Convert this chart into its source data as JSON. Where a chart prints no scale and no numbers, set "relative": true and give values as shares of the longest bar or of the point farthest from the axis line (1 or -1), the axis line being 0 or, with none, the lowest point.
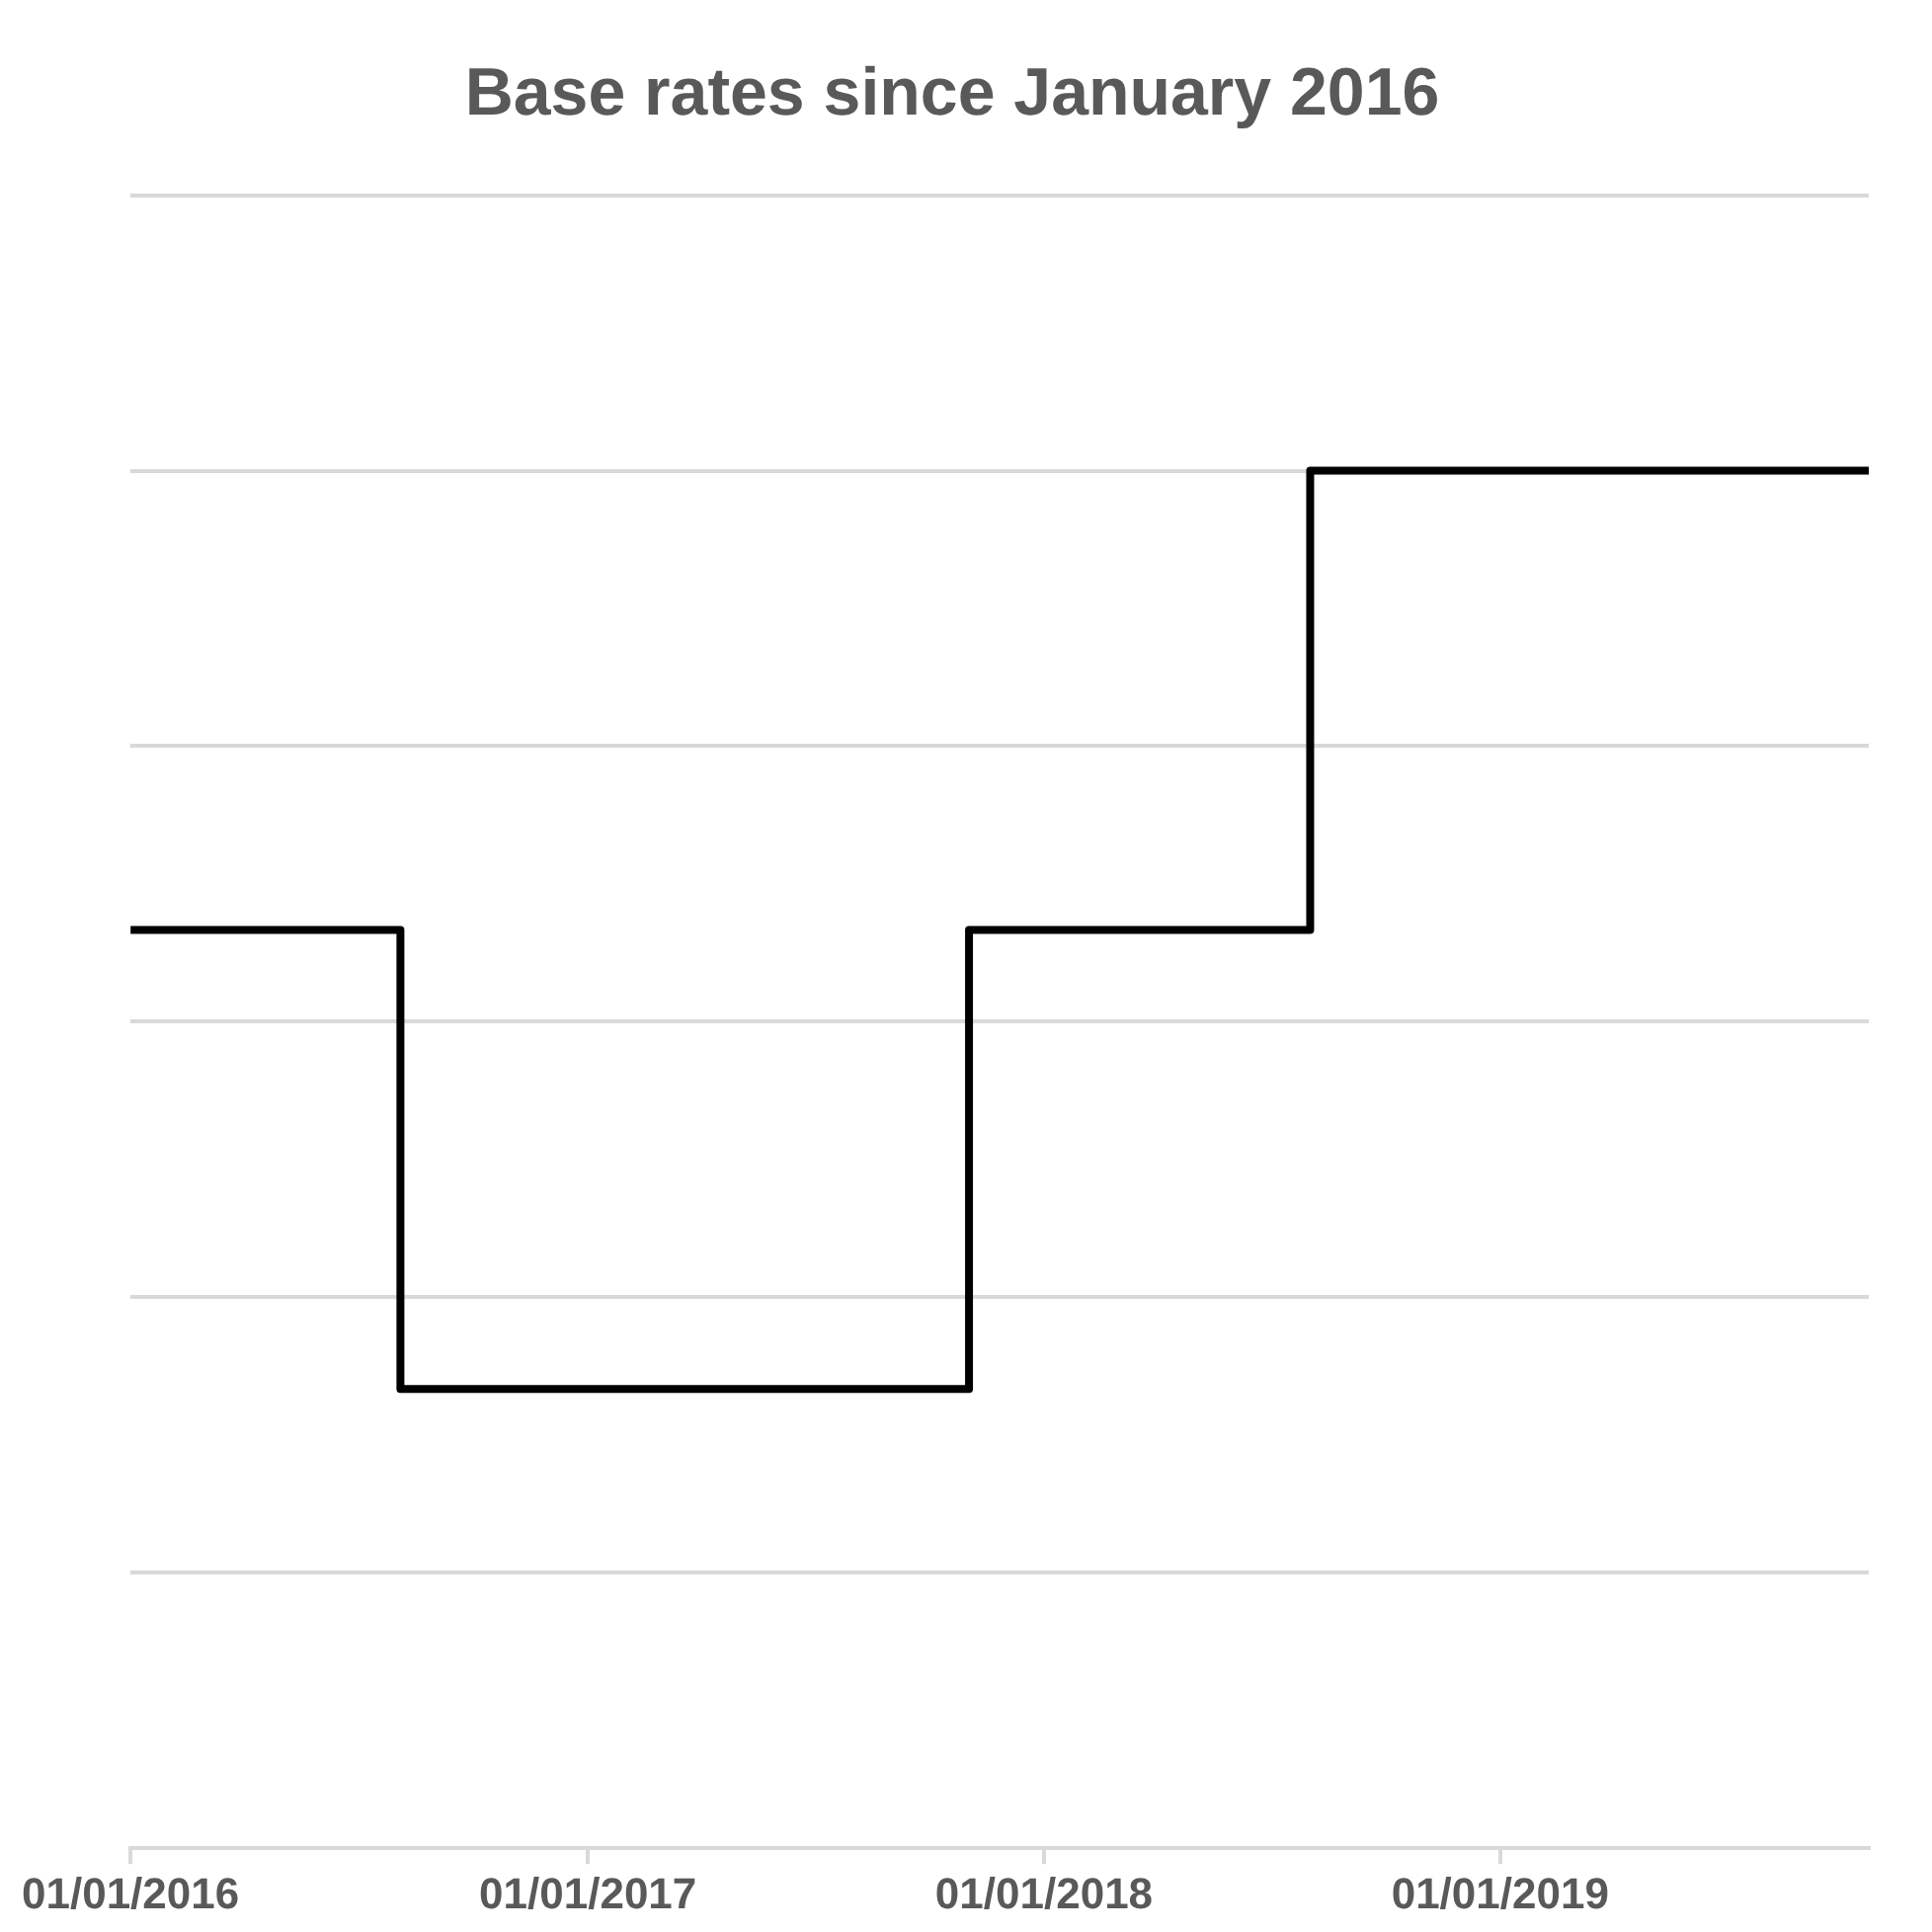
{
  "chart_data": {
    "type": "step",
    "title": "Base rates since January 2016",
    "relative": true,
    "x": [
      "2016-01-01",
      "2016-08-04",
      "2017-11-02",
      "2018-08-02",
      "2019-10-23"
    ],
    "series": [
      {
        "color": "#000000",
        "values": [
          0.6667,
          0.3333,
          0.6667,
          1,
          1
        ]
      }
    ],
    "xlim": [
      "2016-01-01",
      "2019-10-23"
    ],
    "xticks": [
      {
        "value": "2016-01-01",
        "label": "01/01/2016"
      },
      {
        "value": "2017-01-01",
        "label": "01/01/2017"
      },
      {
        "value": "2018-01-01",
        "label": "01/01/2018"
      },
      {
        "value": "2019-01-01",
        "label": "01/01/2019"
      }
    ],
    "grid": "y",
    "legend": false
  }
}
